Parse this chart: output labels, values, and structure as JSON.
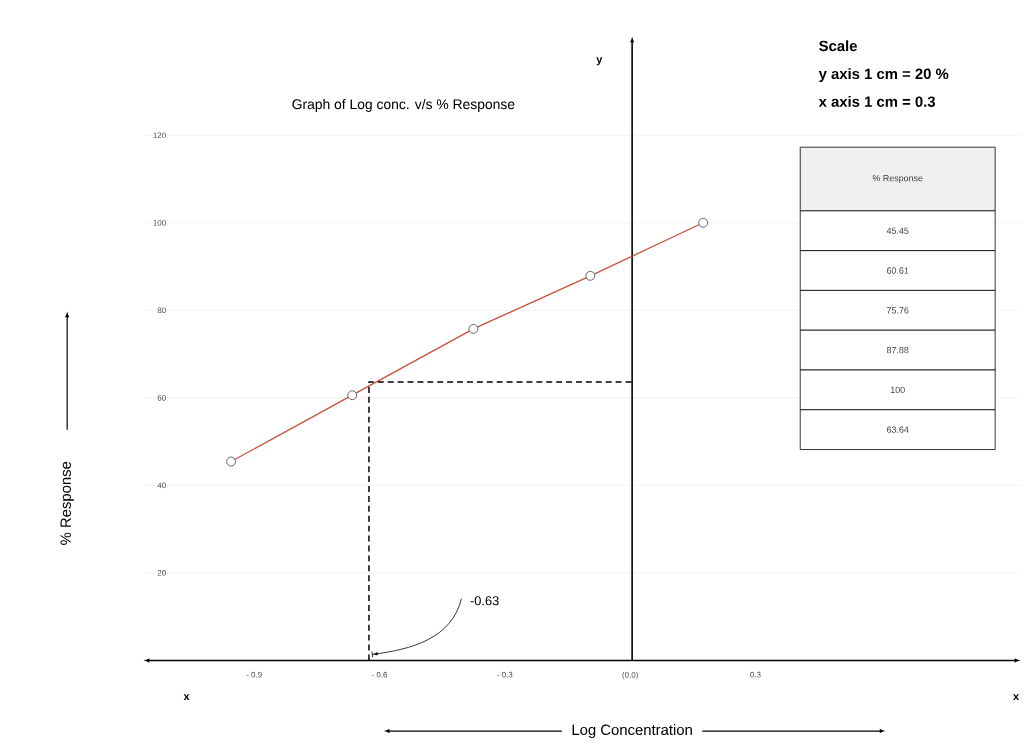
{
  "chart_data": {
    "type": "line",
    "title": "Graph of Log conc. v/s % Response",
    "xlabel": "Log Concentration",
    "ylabel": "% Response",
    "xlim": [
      -1.17,
      0.93
    ],
    "ylim": [
      0,
      141
    ],
    "xticks": [
      {
        "value": -0.9,
        "label": "- 0.9"
      },
      {
        "value": -0.6,
        "label": "- 0.6"
      },
      {
        "value": -0.3,
        "label": "- 0.3"
      },
      {
        "value": 0,
        "label": "(0,0)"
      },
      0.3
    ],
    "yticks": [
      20,
      40,
      60,
      80,
      100,
      120
    ],
    "grid": "y",
    "series": [
      {
        "color": "#c8503f",
        "marker": "circle",
        "line_style": "solid",
        "x": [
          -0.96,
          -0.67,
          -0.38,
          -0.1,
          0.17
        ],
        "values": [
          45.45,
          60.61,
          75.76,
          87.88,
          100
        ]
      },
      {
        "color": "#000000",
        "marker": "none",
        "line_style": "dashed",
        "x": [
          -0.63,
          -0.63,
          0
        ],
        "values": [
          0,
          63.64,
          63.64
        ]
      }
    ],
    "annotations": [
      "Scale",
      "y axis 1 cm = 20 %",
      "x axis 1 cm = 0.3",
      "% Response",
      "45.45",
      "60.61",
      "75.76",
      "87.88",
      "100",
      "63.64",
      "x",
      "x",
      "y",
      {
        "text": "-0.63",
        "x": -0.63,
        "y": 0
      }
    ]
  }
}
